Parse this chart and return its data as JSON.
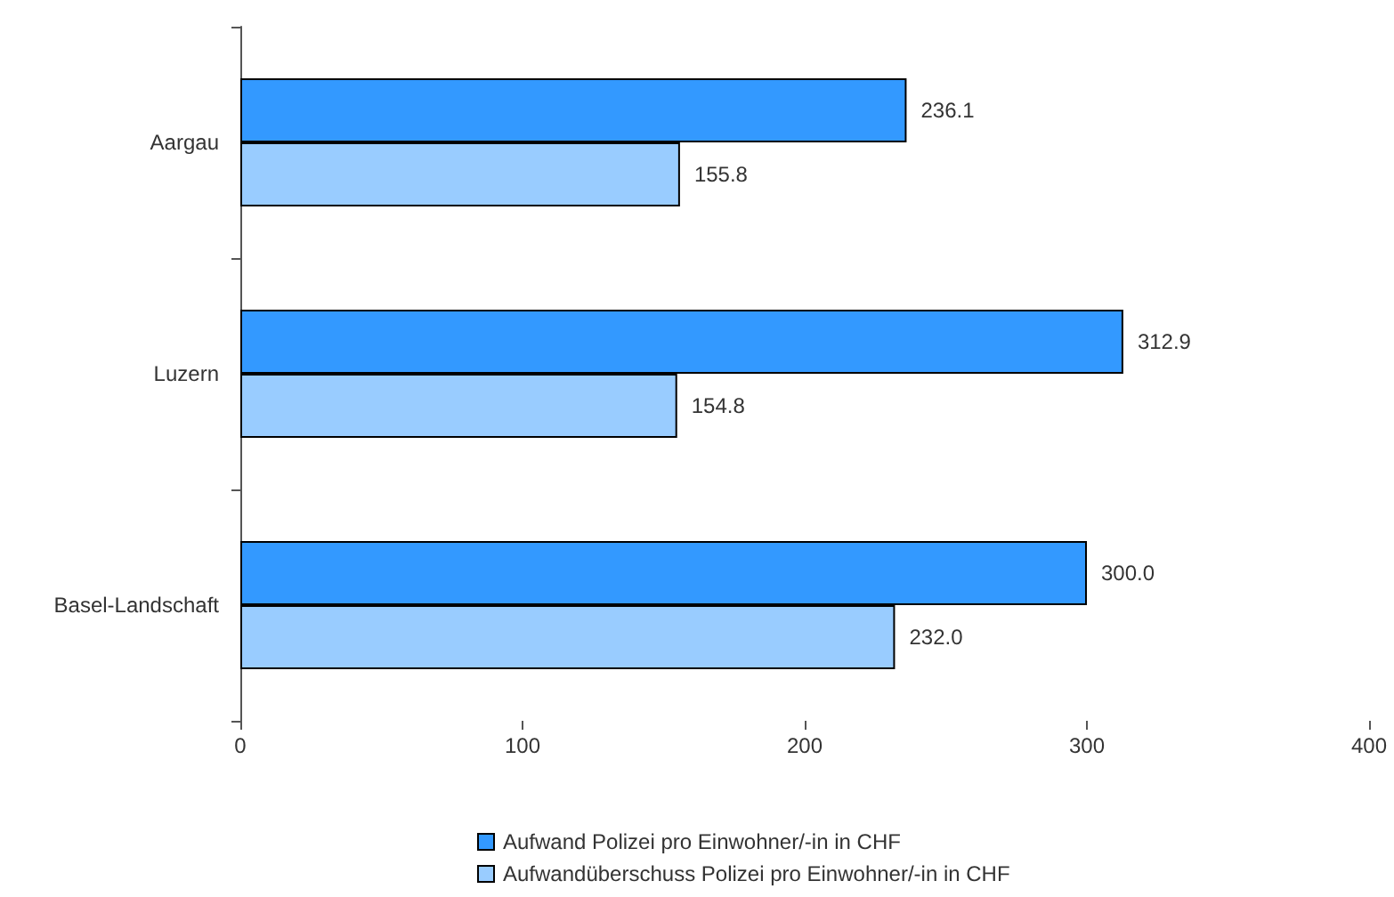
{
  "chart_data": {
    "type": "bar",
    "orientation": "horizontal",
    "categories": [
      "Aargau",
      "Luzern",
      "Basel-Landschaft"
    ],
    "series": [
      {
        "name": "Aufwand Polizei pro Einwohner/-in in CHF",
        "color": "#3399ff",
        "values": [
          236.1,
          312.9,
          300.0
        ],
        "value_labels": [
          "236.1",
          "312.9",
          "300.0"
        ]
      },
      {
        "name": "Aufwandüberschuss Polizei pro Einwohner/-in in CHF",
        "color": "#99ccff",
        "values": [
          155.8,
          154.8,
          232.0
        ],
        "value_labels": [
          "155.8",
          "154.8",
          "232.0"
        ]
      }
    ],
    "xlim": [
      0,
      400
    ],
    "xticks": [
      0,
      100,
      200,
      300,
      400
    ],
    "grid": false,
    "legend": "bottom"
  }
}
